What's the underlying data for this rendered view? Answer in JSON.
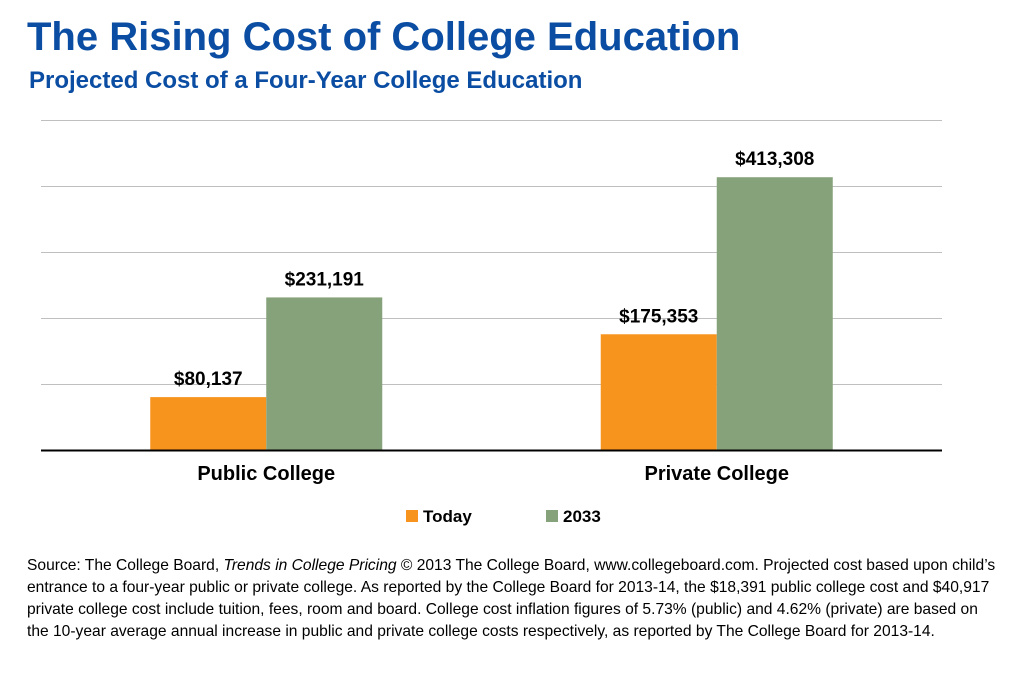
{
  "title": "The Rising Cost of College Education",
  "subtitle": "Projected Cost of a Four-Year College Education",
  "colors": {
    "title": "#0a4da2",
    "today": "#f7941d",
    "future": "#86a27a",
    "grid": "#bfbfbf",
    "axis": "#000000"
  },
  "chart_data": {
    "type": "bar",
    "categories": [
      "Public College",
      "Private College"
    ],
    "series": [
      {
        "name": "Today",
        "values": [
          80137,
          175353
        ],
        "labels": [
          "$80,137",
          "$175,353"
        ]
      },
      {
        "name": "2033",
        "values": [
          231191,
          413308
        ],
        "labels": [
          "$231,191",
          "$413,308"
        ]
      }
    ],
    "xlabel": "",
    "ylabel": "",
    "ylim": [
      0,
      500000
    ],
    "grid": true,
    "legend": "bottom"
  },
  "source": {
    "prefix": "Source: The College Board, ",
    "publication": "Trends in College Pricing",
    "body": " © 2013  The College Board, www.collegeboard.com. Projected cost based upon child’s entrance to a four-year public or private college. As reported by the College Board for 2013-14, the $18,391 public college cost and $40,917 private college cost include tuition, fees, room and board. College cost inflation figures of 5.73% (public) and 4.62% (private) are based on the 10-year average annual increase in public and private college costs respectively, as reported by The College Board for 2013-14."
  }
}
